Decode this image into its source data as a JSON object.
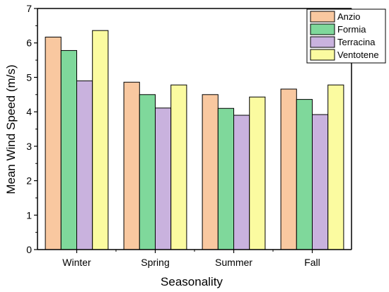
{
  "chart_data": {
    "type": "bar",
    "xlabel": "Seasonality",
    "ylabel": "Mean Wind Speed (m/s)",
    "categories": [
      "Winter",
      "Spring",
      "Summer",
      "Fall"
    ],
    "ylim": [
      0,
      7
    ],
    "yticks": [
      0,
      1,
      2,
      3,
      4,
      5,
      6,
      7
    ],
    "grid": false,
    "legend_position": "top-right",
    "series": [
      {
        "name": "Anzio",
        "color": "#F9C8A0",
        "values": [
          6.17,
          4.86,
          4.5,
          4.66
        ]
      },
      {
        "name": "Formia",
        "color": "#7FD89B",
        "values": [
          5.78,
          4.5,
          4.1,
          4.36
        ]
      },
      {
        "name": "Terracina",
        "color": "#C9B2DE",
        "values": [
          4.9,
          4.11,
          3.9,
          3.92
        ]
      },
      {
        "name": "Ventotene",
        "color": "#FBFBA0",
        "values": [
          6.36,
          4.78,
          4.43,
          4.78
        ]
      }
    ]
  }
}
